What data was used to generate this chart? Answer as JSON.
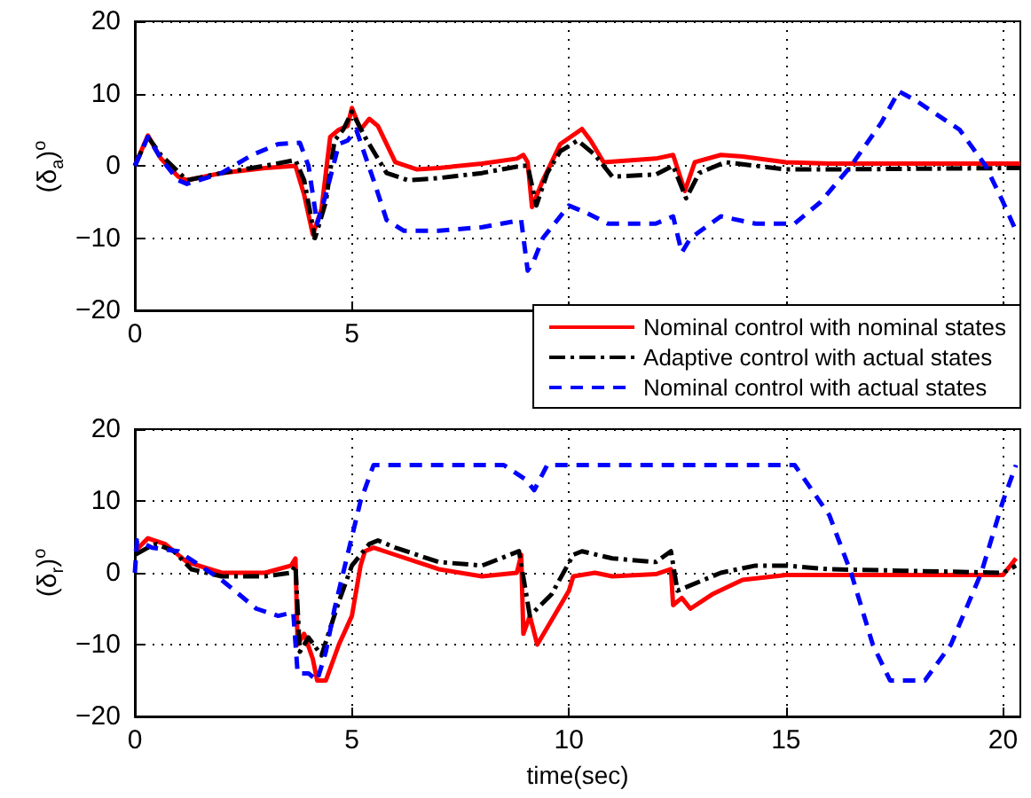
{
  "chart_data": [
    {
      "type": "line",
      "ylabel": "(δ$_{a}$)$^{o}$",
      "xlim": [
        0,
        20.4
      ],
      "xticks": [
        0,
        5,
        {
          "value": 10,
          "label": null
        },
        {
          "value": 15,
          "label": null
        },
        {
          "value": 20,
          "label": null
        }
      ],
      "ylim": [
        -20,
        20
      ],
      "yticks": [
        -20,
        -10,
        0,
        10,
        20
      ],
      "grid": true,
      "legend": "bottom right",
      "marker": "none",
      "series": [
        {
          "name": "Nominal control with nominal states",
          "color": "#ff0000",
          "line_style": "solid",
          "x": [
            0,
            0.3,
            0.6,
            1.0,
            1.2,
            2,
            3,
            3.7,
            3.9,
            4.1,
            4.3,
            4.5,
            4.7,
            4.9,
            5.0,
            5.2,
            5.4,
            5.6,
            6.0,
            6.5,
            7,
            8,
            8.8,
            8.95,
            9.05,
            9.15,
            9.4,
            9.8,
            10.3,
            10.5,
            10.8,
            12.0,
            12.4,
            12.67,
            12.9,
            13.5,
            14,
            15,
            16,
            20.4
          ],
          "values": [
            0,
            4.2,
            1,
            -1.5,
            -2,
            -1,
            -0.3,
            0,
            -4,
            -9.5,
            -6,
            4,
            5,
            5.5,
            8,
            5,
            6.5,
            5.5,
            0.5,
            -0.5,
            -0.3,
            0.3,
            1,
            1.5,
            0.5,
            -5.7,
            -2,
            3,
            5.1,
            3.5,
            0.5,
            1,
            1.5,
            -3.5,
            0.5,
            1.5,
            1.3,
            0.5,
            0.3,
            0.3
          ]
        },
        {
          "name": "Adaptive control with actual states",
          "color": "#000000",
          "line_style": "dashdot",
          "x": [
            0,
            0.3,
            0.6,
            1.2,
            2,
            3,
            3.7,
            3.9,
            4.15,
            4.4,
            4.6,
            4.8,
            5.0,
            5.3,
            5.8,
            6.3,
            7,
            8,
            8.9,
            9.05,
            9.25,
            9.5,
            9.8,
            10.2,
            10.6,
            11,
            12,
            12.4,
            12.7,
            13,
            13.6,
            15,
            16,
            20.4
          ],
          "values": [
            0,
            4,
            1.5,
            -2,
            -1,
            0,
            0.8,
            -2,
            -10,
            -5,
            3.5,
            5,
            7.5,
            4,
            -1,
            -2,
            -1.7,
            -1,
            0,
            0,
            -5.5,
            -1,
            2,
            3.5,
            1.5,
            -1.5,
            -1.2,
            0,
            -4.5,
            -1,
            0.5,
            -0.5,
            -0.5,
            -0.3
          ]
        },
        {
          "name": "Nominal control with actual states",
          "color": "#0000ff",
          "line_style": "dashed",
          "x": [
            0,
            0.3,
            0.6,
            1.0,
            1.2,
            2,
            2.7,
            3.3,
            3.8,
            4.0,
            4.2,
            4.4,
            4.7,
            4.9,
            5.1,
            5.5,
            5.8,
            6.2,
            7,
            8,
            8.9,
            9.05,
            9.2,
            9.4,
            10.0,
            10.4,
            10.9,
            12,
            12.4,
            12.6,
            12.8,
            13.5,
            14.3,
            15.2,
            15.8,
            16.5,
            17.2,
            17.6,
            18.0,
            19.0,
            19.6,
            20.0,
            20.3
          ],
          "values": [
            0,
            4,
            1,
            -2,
            -2.5,
            -1,
            1.5,
            3,
            3.2,
            0,
            -8,
            -4,
            3,
            3.5,
            5,
            -2,
            -7.5,
            -9,
            -9,
            -8.5,
            -7.5,
            -14.5,
            -13,
            -10,
            -5.5,
            -6.5,
            -8,
            -8,
            -7,
            -12,
            -10,
            -7,
            -8,
            -8,
            -5,
            0,
            6,
            10.3,
            9,
            5,
            0,
            -5,
            -9
          ]
        }
      ]
    },
    {
      "type": "line",
      "ylabel": "(δ$_{r}$)$^{o}$",
      "xlabel": "time(sec)",
      "xlim": [
        0,
        20.4
      ],
      "xticks": [
        0,
        5,
        10,
        15,
        20
      ],
      "ylim": [
        -20,
        20
      ],
      "yticks": [
        -20,
        -10,
        0,
        10,
        20
      ],
      "grid": true,
      "marker": "none",
      "series": [
        {
          "color": "#ff0000",
          "line_style": "solid",
          "x": [
            0,
            0.3,
            0.7,
            1.2,
            2,
            3,
            3.6,
            3.7,
            3.75,
            3.9,
            4.1,
            4.2,
            4.4,
            4.7,
            5.0,
            5.2,
            5.3,
            5.5,
            6,
            7,
            8,
            8.8,
            8.9,
            8.95,
            9.1,
            9.27,
            10.0,
            10.1,
            10.6,
            11,
            12,
            12.35,
            12.4,
            12.6,
            12.8,
            13.3,
            14,
            15,
            20,
            20.3
          ],
          "values": [
            3,
            4.8,
            4,
            1.5,
            0,
            0,
            1,
            2,
            -10,
            -8.5,
            -12,
            -15,
            -15,
            -10,
            -6,
            1,
            3,
            3.5,
            2.5,
            0.5,
            -0.5,
            0,
            2.5,
            -8.5,
            -6,
            -10,
            -2.5,
            -0.5,
            0,
            -0.5,
            -0.2,
            0.5,
            -4.5,
            -3.5,
            -5,
            -3,
            -1,
            -0.3,
            -0.3,
            2
          ]
        },
        {
          "color": "#000000",
          "line_style": "dashdot",
          "x": [
            0,
            0.3,
            0.5,
            0.9,
            1.3,
            2,
            3,
            3.6,
            3.7,
            3.8,
            4.0,
            4.3,
            4.7,
            5.0,
            5.4,
            5.6,
            6,
            7,
            8,
            8.85,
            9.1,
            9.6,
            10.1,
            10.3,
            11,
            12,
            12.35,
            12.5,
            13.5,
            14.3,
            15,
            16,
            20,
            20.3
          ],
          "values": [
            2.5,
            3.5,
            4,
            3,
            0.5,
            -0.5,
            -0.5,
            0,
            1,
            -11,
            -9,
            -11.5,
            -4,
            1,
            4,
            4.5,
            3.5,
            1.5,
            1,
            3,
            -6,
            -3,
            2.5,
            3,
            2,
            1.5,
            3,
            -2.5,
            0,
            1,
            1,
            0.5,
            0,
            1
          ]
        },
        {
          "color": "#0000ff",
          "line_style": "dashed",
          "x": [
            0,
            0.05,
            0.4,
            1,
            2,
            2.8,
            3.3,
            3.65,
            3.75,
            4.0,
            4.2,
            4.4,
            4.6,
            5.0,
            5.2,
            5.5,
            8.5,
            9.0,
            9.2,
            9.5,
            15.2,
            16.0,
            16.5,
            17.0,
            17.4,
            18.2,
            18.8,
            19.5,
            20.0,
            20.3
          ],
          "values": [
            0,
            4.5,
            3.5,
            3,
            -1,
            -5,
            -6,
            -5.5,
            -14,
            -14,
            -15,
            -11,
            -5,
            5,
            10,
            15,
            15,
            13,
            11.5,
            15,
            15,
            8,
            0,
            -10,
            -15,
            -15,
            -10,
            0,
            10,
            15
          ]
        }
      ]
    }
  ]
}
